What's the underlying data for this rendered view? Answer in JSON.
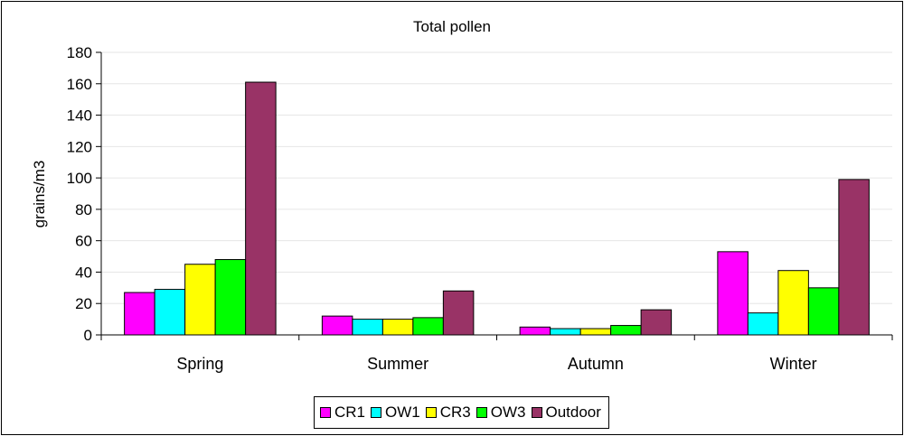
{
  "chart_data": {
    "type": "bar",
    "title": "Total pollen",
    "ylabel": "grains/m3",
    "xlabel": "",
    "categories": [
      "Spring",
      "Summer",
      "Autumn",
      "Winter"
    ],
    "ylim": [
      0,
      180
    ],
    "yticks": [
      "0",
      "20",
      "40",
      "60",
      "80",
      "100",
      "120",
      "140",
      "160",
      "180"
    ],
    "grid": true,
    "legend_position": "bottom",
    "series": [
      {
        "name": "CR1",
        "color": "#FF00FF",
        "values": [
          27,
          12,
          5,
          53
        ]
      },
      {
        "name": "OW1",
        "color": "#00FFFF",
        "values": [
          29,
          10,
          4,
          14
        ]
      },
      {
        "name": "CR3",
        "color": "#FFFF00",
        "values": [
          45,
          10,
          4,
          41
        ]
      },
      {
        "name": "OW3",
        "color": "#00FF00",
        "values": [
          48,
          11,
          6,
          30
        ]
      },
      {
        "name": "Outdoor",
        "color": "#993366",
        "values": [
          161,
          28,
          16,
          99
        ]
      }
    ]
  }
}
